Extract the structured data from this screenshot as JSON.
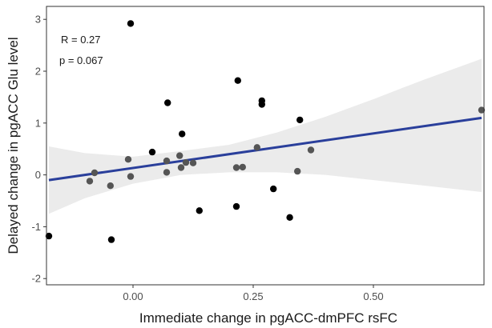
{
  "chart_data": {
    "type": "scatter",
    "xlabel": "Immediate change in pgACC-dmPFC rsFC",
    "ylabel": "Delayed change in pgACC Glu level",
    "xlim": [
      -0.18,
      0.73
    ],
    "ylim": [
      -2.12,
      3.25
    ],
    "x_ticks": [
      0.0,
      0.25,
      0.5
    ],
    "x_tick_labels": [
      "0.00",
      "0.25",
      "0.50"
    ],
    "y_ticks": [
      -2,
      -1,
      0,
      1,
      2,
      3
    ],
    "y_tick_labels": [
      "-2",
      "-1",
      "0",
      "1",
      "2",
      "3"
    ],
    "grid": false,
    "annotations": [
      "R = 0.27",
      "p = 0.067"
    ],
    "points": [
      {
        "x": -0.175,
        "y": -1.18
      },
      {
        "x": -0.045,
        "y": -1.25
      },
      {
        "x": -0.005,
        "y": 2.92
      },
      {
        "x": 0.072,
        "y": 1.39
      },
      {
        "x": 0.102,
        "y": 0.79
      },
      {
        "x": 0.11,
        "y": 0.24
      },
      {
        "x": 0.125,
        "y": 0.23
      },
      {
        "x": 0.138,
        "y": -0.69
      },
      {
        "x": 0.218,
        "y": 1.82
      },
      {
        "x": 0.215,
        "y": -0.61
      },
      {
        "x": 0.268,
        "y": 1.43
      },
      {
        "x": 0.268,
        "y": 1.36
      },
      {
        "x": 0.292,
        "y": -0.27
      },
      {
        "x": 0.326,
        "y": -0.82
      },
      {
        "x": 0.342,
        "y": 0.07
      },
      {
        "x": 0.347,
        "y": 1.06
      },
      {
        "x": 0.725,
        "y": 1.25
      },
      {
        "x": -0.09,
        "y": -0.12
      },
      {
        "x": -0.08,
        "y": 0.04
      },
      {
        "x": -0.047,
        "y": -0.21
      },
      {
        "x": -0.01,
        "y": 0.3
      },
      {
        "x": -0.005,
        "y": -0.03
      },
      {
        "x": 0.04,
        "y": 0.44
      },
      {
        "x": 0.07,
        "y": 0.27
      },
      {
        "x": 0.07,
        "y": 0.05
      },
      {
        "x": 0.097,
        "y": 0.37
      },
      {
        "x": 0.1,
        "y": 0.14
      },
      {
        "x": 0.215,
        "y": 0.14
      },
      {
        "x": 0.228,
        "y": 0.15
      },
      {
        "x": 0.258,
        "y": 0.53
      },
      {
        "x": 0.37,
        "y": 0.48
      }
    ],
    "fit_line": {
      "x": [
        -0.175,
        0.725
      ],
      "y": [
        -0.1,
        1.1
      ]
    },
    "confidence_band": {
      "x": [
        -0.175,
        -0.1,
        0.0,
        0.1,
        0.2,
        0.3,
        0.4,
        0.5,
        0.6,
        0.725
      ],
      "lower": [
        -0.75,
        -0.45,
        -0.17,
        0.0,
        0.05,
        0.05,
        0.0,
        -0.1,
        -0.2,
        -0.33
      ],
      "upper": [
        0.55,
        0.42,
        0.35,
        0.46,
        0.58,
        0.82,
        1.12,
        1.46,
        1.82,
        2.24
      ]
    },
    "colors": {
      "line": "#2a3f9b",
      "band": "#ebebeb",
      "point": "#000000",
      "panel_border": "#333333"
    }
  }
}
